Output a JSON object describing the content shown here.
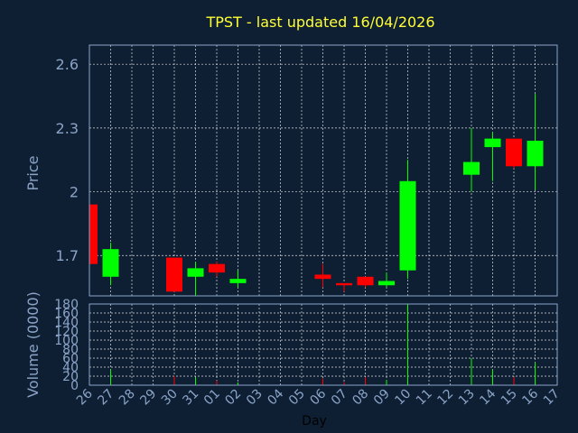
{
  "chart_data": {
    "type": "candlestick",
    "title": "TPST - last updated 16/04/2026",
    "xlabel": "Day",
    "price_panel": {
      "ylabel": "Price",
      "ylim": [
        1.51,
        2.69
      ],
      "yticks": [
        1.7,
        2,
        2.3,
        2.6
      ],
      "ytick_labels": [
        "1.7",
        "2",
        "2.3",
        "2.6"
      ]
    },
    "volume_panel": {
      "ylabel": "Volume (0000)",
      "ylim": [
        0,
        180
      ],
      "yticks": [
        0,
        20,
        40,
        60,
        80,
        100,
        120,
        140,
        160,
        180
      ],
      "ytick_labels": [
        "0",
        "20",
        "40",
        "60",
        "80",
        "100",
        "120",
        "140",
        "160",
        "180"
      ]
    },
    "x_ticks": [
      "26",
      "27",
      "28",
      "29",
      "30",
      "31",
      "01",
      "02",
      "03",
      "04",
      "05",
      "06",
      "07",
      "08",
      "09",
      "10",
      "11",
      "12",
      "13",
      "14",
      "15",
      "16",
      "17"
    ],
    "candles": [
      {
        "day": "26",
        "open": 1.94,
        "high": 1.94,
        "low": 1.66,
        "close": 1.66,
        "volume": 0
      },
      {
        "day": "27",
        "open": 1.6,
        "high": 1.76,
        "low": 1.56,
        "close": 1.73,
        "volume": 35
      },
      {
        "day": "30",
        "open": 1.69,
        "high": 1.69,
        "low": 1.53,
        "close": 1.53,
        "volume": 20
      },
      {
        "day": "31",
        "open": 1.6,
        "high": 1.67,
        "low": 1.51,
        "close": 1.64,
        "volume": 18
      },
      {
        "day": "01",
        "open": 1.66,
        "high": 1.67,
        "low": 1.6,
        "close": 1.62,
        "volume": 10
      },
      {
        "day": "02",
        "open": 1.57,
        "high": 1.63,
        "low": 1.55,
        "close": 1.59,
        "volume": 6
      },
      {
        "day": "06",
        "open": 1.61,
        "high": 1.66,
        "low": 1.55,
        "close": 1.59,
        "volume": 15
      },
      {
        "day": "07",
        "open": 1.57,
        "high": 1.57,
        "low": 1.53,
        "close": 1.56,
        "volume": 7
      },
      {
        "day": "08",
        "open": 1.6,
        "high": 1.6,
        "low": 1.55,
        "close": 1.56,
        "volume": 18
      },
      {
        "day": "09",
        "open": 1.56,
        "high": 1.62,
        "low": 1.55,
        "close": 1.58,
        "volume": 12
      },
      {
        "day": "10",
        "open": 1.63,
        "high": 2.15,
        "low": 1.59,
        "close": 2.05,
        "volume": 180
      },
      {
        "day": "13",
        "open": 2.08,
        "high": 2.3,
        "low": 2.0,
        "close": 2.14,
        "volume": 60
      },
      {
        "day": "14",
        "open": 2.21,
        "high": 2.28,
        "low": 2.05,
        "close": 2.25,
        "volume": 35
      },
      {
        "day": "15",
        "open": 2.25,
        "high": 2.25,
        "low": 2.11,
        "close": 2.12,
        "volume": 18
      },
      {
        "day": "16",
        "open": 2.12,
        "high": 2.46,
        "low": 2.01,
        "close": 2.24,
        "volume": 50
      }
    ],
    "colors": {
      "up": "#00ff00",
      "down": "#ff0000",
      "background": "#0f1f33",
      "title": "#ffff33",
      "axis_text": "#8aa4c8",
      "grid": "#ffffff"
    },
    "grid": true
  }
}
